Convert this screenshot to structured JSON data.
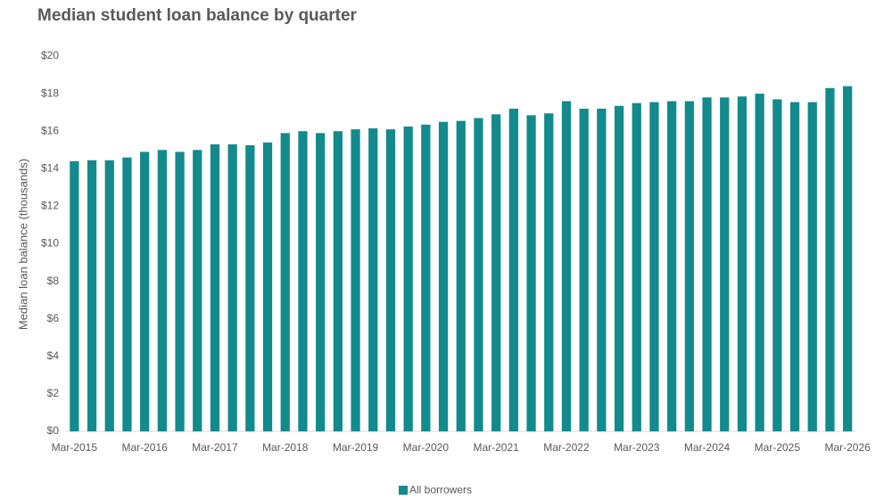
{
  "chart_data": {
    "type": "bar",
    "title": "Median student loan balance by quarter",
    "y_label": "Median loan balance (thousands)",
    "categories": [
      "Mar-2015",
      null,
      null,
      null,
      "Mar-2016",
      null,
      null,
      null,
      "Mar-2017",
      null,
      null,
      null,
      "Mar-2018",
      null,
      null,
      null,
      "Mar-2019",
      null,
      null,
      null,
      "Mar-2020",
      null,
      null,
      null,
      "Mar-2021",
      null,
      null,
      null,
      "Mar-2022",
      null,
      null,
      null,
      "Mar-2023",
      null,
      null,
      null,
      "Mar-2024",
      null,
      null,
      null,
      "Mar-2025",
      null,
      null,
      null,
      "Mar-2026"
    ],
    "series": [
      {
        "name": "All borrowers",
        "color": "#138a8c",
        "values": [
          14.4,
          14.45,
          14.45,
          14.6,
          14.9,
          15.0,
          14.9,
          15.0,
          15.3,
          15.3,
          15.25,
          15.4,
          15.9,
          16.0,
          15.9,
          16.0,
          16.1,
          16.15,
          16.1,
          16.25,
          16.35,
          16.5,
          16.55,
          16.7,
          16.9,
          17.2,
          16.85,
          16.95,
          17.6,
          17.2,
          17.2,
          17.35,
          17.5,
          17.55,
          17.6,
          17.6,
          17.8,
          17.8,
          17.85,
          18.0,
          17.7,
          17.55,
          17.55,
          18.3,
          18.4
        ]
      }
    ],
    "ylim": [
      0,
      20
    ],
    "yticks": [
      {
        "value": 0,
        "label": "$0"
      },
      {
        "value": 2,
        "label": "$2"
      },
      {
        "value": 4,
        "label": "$4"
      },
      {
        "value": 6,
        "label": "$6"
      },
      {
        "value": 8,
        "label": "$8"
      },
      {
        "value": 10,
        "label": "$10"
      },
      {
        "value": 12,
        "label": "$12"
      },
      {
        "value": 14,
        "label": "$14"
      },
      {
        "value": 16,
        "label": "$16"
      },
      {
        "value": 18,
        "label": "$18"
      },
      {
        "value": 20,
        "label": "$20"
      }
    ],
    "grid": false,
    "legend": "bottom"
  }
}
